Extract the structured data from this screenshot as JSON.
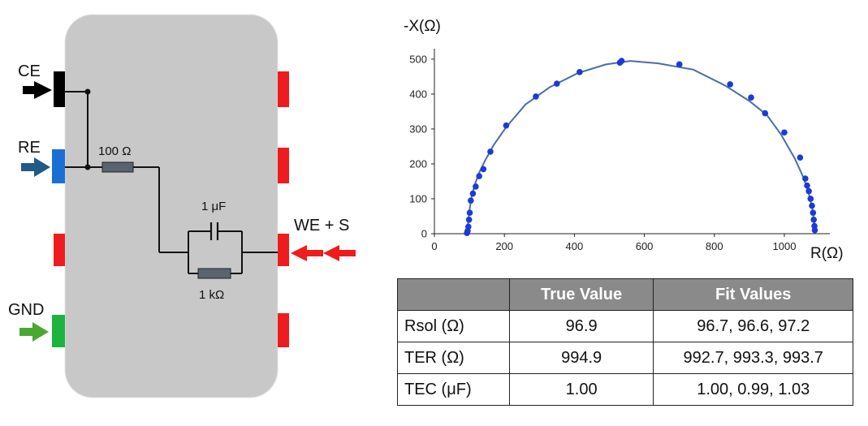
{
  "device": {
    "terminals": {
      "ce": "CE",
      "re": "RE",
      "gnd": "GND",
      "we_s": "WE + S"
    },
    "components": {
      "resistor_series": "100 Ω",
      "capacitor": "1 μF",
      "resistor_parallel": "1 kΩ"
    },
    "colors": {
      "body": "#c8c8c8",
      "ce_pad": "#000000",
      "re_pad": "#1a6fd4",
      "gnd_pad": "#1db33f",
      "we_pad": "#ee1c1c",
      "ce_arrow": "#000000",
      "re_arrow": "#205a86",
      "gnd_arrow": "#4aa832",
      "we_arrow": "#ee1c1c"
    }
  },
  "chart_data": {
    "type": "scatter",
    "xlabel": "R(Ω)",
    "ylabel": "-X(Ω)",
    "xlim": [
      0,
      1130
    ],
    "ylim": [
      0,
      530
    ],
    "xticks": [
      0,
      200,
      400,
      600,
      800,
      1000
    ],
    "yticks": [
      0,
      100,
      200,
      300,
      400,
      500
    ],
    "grid": false,
    "series": [
      {
        "style": "markers",
        "color": "#1a3bd6",
        "x": [
          93,
          95,
          97,
          99,
          101,
          104,
          110,
          118,
          128,
          140,
          160,
          205,
          290,
          350,
          415,
          530,
          535,
          700,
          845,
          905,
          945,
          1000,
          1045,
          1060,
          1065,
          1070,
          1075,
          1079,
          1082,
          1084,
          1086,
          1087
        ],
        "y": [
          2,
          8,
          20,
          40,
          60,
          95,
          115,
          135,
          165,
          185,
          235,
          310,
          393,
          430,
          463,
          490,
          495,
          485,
          428,
          390,
          345,
          290,
          218,
          158,
          138,
          122,
          100,
          80,
          60,
          40,
          22,
          10
        ]
      },
      {
        "style": "line",
        "color": "#4a6ca8",
        "x": [
          93,
          96,
          100,
          106,
          115,
          128,
          145,
          170,
          205,
          260,
          330,
          410,
          490,
          560,
          640,
          740,
          830,
          900,
          950,
          990,
          1030,
          1055,
          1070,
          1080,
          1085,
          1087
        ],
        "y": [
          0,
          30,
          65,
          105,
          140,
          175,
          210,
          255,
          305,
          370,
          420,
          460,
          485,
          495,
          488,
          470,
          425,
          380,
          340,
          285,
          215,
          160,
          115,
          70,
          35,
          8
        ]
      }
    ]
  },
  "table": {
    "headers": [
      "",
      "True Value",
      "Fit Values"
    ],
    "rows": [
      [
        "Rsol (Ω)",
        "96.9",
        "96.7, 96.6, 97.2"
      ],
      [
        "TER (Ω)",
        "994.9",
        "992.7, 993.3, 993.7"
      ],
      [
        "TEC (μF)",
        "1.00",
        "1.00, 0.99, 1.03"
      ]
    ]
  }
}
